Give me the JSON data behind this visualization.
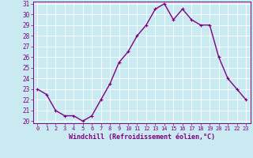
{
  "x": [
    0,
    1,
    2,
    3,
    4,
    5,
    6,
    7,
    8,
    9,
    10,
    11,
    12,
    13,
    14,
    15,
    16,
    17,
    18,
    19,
    20,
    21,
    22,
    23
  ],
  "y": [
    23,
    22.5,
    21,
    20.5,
    20.5,
    20,
    20.5,
    22,
    23.5,
    25.5,
    26.5,
    28,
    29,
    30.5,
    31,
    29.5,
    30.5,
    29.5,
    29,
    29,
    26,
    24,
    23,
    22
  ],
  "line_color": "#800080",
  "marker": "+",
  "marker_color": "#800080",
  "bg_color": "#c8eaf0",
  "grid_color": "#ffffff",
  "xlabel": "Windchill (Refroidissement éolien,°C)",
  "xlabel_color": "#800080",
  "tick_color": "#800080",
  "ylim": [
    20,
    31
  ],
  "xlim": [
    -0.5,
    23.5
  ],
  "yticks": [
    20,
    21,
    22,
    23,
    24,
    25,
    26,
    27,
    28,
    29,
    30,
    31
  ],
  "xticks": [
    0,
    1,
    2,
    3,
    4,
    5,
    6,
    7,
    8,
    9,
    10,
    11,
    12,
    13,
    14,
    15,
    16,
    17,
    18,
    19,
    20,
    21,
    22,
    23
  ],
  "linewidth": 1.0,
  "markersize": 3
}
